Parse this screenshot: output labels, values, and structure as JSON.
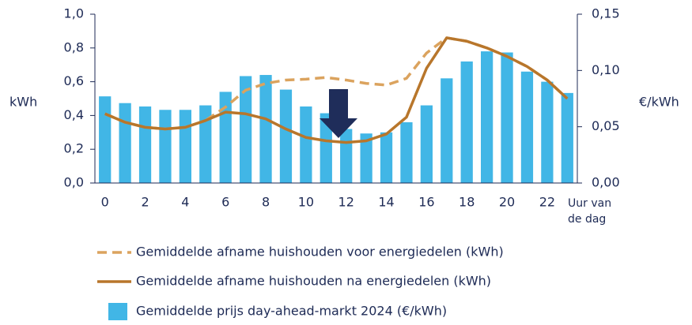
{
  "chart_data": {
    "type": "bar_line",
    "categories": [
      0,
      null,
      2,
      null,
      4,
      null,
      6,
      null,
      8,
      null,
      10,
      null,
      12,
      null,
      14,
      null,
      16,
      null,
      18,
      null,
      20,
      null,
      22,
      null
    ],
    "x_label": "Uur van de dag",
    "y_label": "kWh",
    "y2_label": "€/kWh",
    "ylim": [
      0,
      1.0
    ],
    "yticks": [
      {
        "value": 0,
        "label": "0,0"
      },
      {
        "value": 0.2,
        "label": "0,2"
      },
      {
        "value": 0.4,
        "label": "0,4"
      },
      {
        "value": 0.6,
        "label": "0,6"
      },
      {
        "value": 0.8,
        "label": "0,8"
      },
      {
        "value": 1.0,
        "label": "1,0"
      }
    ],
    "y2lim": [
      0,
      0.15
    ],
    "y2ticks": [
      {
        "value": 0,
        "label": "0,00"
      },
      {
        "value": 0.05,
        "label": "0,05"
      },
      {
        "value": 0.1,
        "label": "0,10"
      },
      {
        "value": 0.15,
        "label": "0,15"
      }
    ],
    "series": [
      {
        "name": "Gemiddelde afname huishouden voor energiedelen (kWh)",
        "kind": "line",
        "dashed": true,
        "color": "#dba35e",
        "values": [
          0.41,
          0.36,
          0.33,
          0.32,
          0.33,
          0.37,
          0.45,
          0.55,
          0.59,
          0.61,
          0.615,
          0.625,
          0.61,
          0.59,
          0.58,
          0.62,
          0.77,
          0.86,
          0.84,
          0.8,
          0.75,
          0.69,
          0.61,
          0.5
        ]
      },
      {
        "name": "Gemiddelde afname huishouden na energiedelen (kWh)",
        "kind": "line",
        "dashed": false,
        "color": "#b8762b",
        "values": [
          0.41,
          0.36,
          0.33,
          0.32,
          0.33,
          0.37,
          0.42,
          0.41,
          0.38,
          0.32,
          0.27,
          0.25,
          0.24,
          0.25,
          0.29,
          0.39,
          0.68,
          0.86,
          0.84,
          0.8,
          0.75,
          0.69,
          0.61,
          0.5
        ]
      },
      {
        "name": "Gemiddelde prijs day-ahead-markt 2024 (€/kWh)",
        "kind": "bar",
        "axis": "y2",
        "color": "#41b6e6",
        "values": [
          0.077,
          0.071,
          0.068,
          0.065,
          0.065,
          0.069,
          0.081,
          0.095,
          0.096,
          0.083,
          0.068,
          0.062,
          0.048,
          0.044,
          0.045,
          0.054,
          0.069,
          0.093,
          0.108,
          0.117,
          0.116,
          0.099,
          0.09,
          0.08
        ]
      }
    ]
  }
}
